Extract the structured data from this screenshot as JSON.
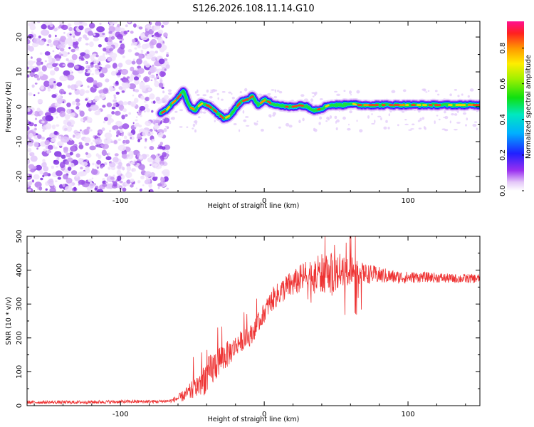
{
  "title": "S126.2026.108.11.14.G10",
  "colors": {
    "snr_line": "#ee3333",
    "spectrogram_noise": "#8a3ee6",
    "axis": "#000000"
  },
  "chart_data": [
    {
      "type": "heatmap",
      "xlabel": "Height of straight line (km)",
      "ylabel": "Frequency (Hz)",
      "xlim": [
        -165,
        150
      ],
      "ylim": [
        -24.5,
        24.5
      ],
      "xticks": [
        -100,
        0,
        100
      ],
      "yticks": [
        -20,
        -10,
        0,
        10,
        20
      ],
      "noise_region_x": [
        -165,
        -72
      ],
      "ridge": {
        "x": [
          -72,
          -68,
          -64,
          -60,
          -56,
          -52,
          -48,
          -44,
          -40,
          -36,
          -32,
          -28,
          -24,
          -20,
          -16,
          -12,
          -8,
          -4,
          0,
          5,
          10,
          15,
          20,
          25,
          30,
          35,
          40,
          45,
          50,
          55,
          60,
          65,
          70,
          80,
          90,
          100,
          110,
          120,
          130,
          140,
          150
        ],
        "y": [
          -2,
          -1,
          1,
          2.5,
          4.5,
          0,
          -1,
          1,
          0.5,
          -0.5,
          -2,
          -3.5,
          -2.5,
          -0.5,
          1.5,
          2,
          3,
          0.5,
          2,
          1,
          0.5,
          0,
          0,
          0.5,
          0,
          -1,
          -0.5,
          0.5,
          0.5,
          0.5,
          1,
          0.5,
          0.5,
          0.5,
          0.5,
          0.5,
          0.5,
          0.5,
          0.5,
          0.5,
          0.5
        ]
      },
      "colorbar": {
        "label": "Normalized spectral amplitude",
        "range": [
          0,
          0.95
        ],
        "ticks": [
          "0.0",
          "0.2",
          "0.4",
          "0.6",
          "0.8"
        ],
        "tick_values": [
          0,
          0.2,
          0.4,
          0.6,
          0.8
        ]
      }
    },
    {
      "type": "line",
      "xlabel": "Height of straight line (km)",
      "ylabel": "SNR (10 * v/v)",
      "xlim": [
        -165,
        150
      ],
      "ylim": [
        0,
        500
      ],
      "xticks": [
        -100,
        0,
        100
      ],
      "yticks": [
        0,
        100,
        200,
        300,
        400,
        500
      ],
      "series": [
        {
          "name": "SNR",
          "x": [
            -165,
            -150,
            -130,
            -110,
            -90,
            -75,
            -65,
            -58,
            -54,
            -50,
            -46,
            -42,
            -38,
            -34,
            -30,
            -26,
            -22,
            -18,
            -14,
            -10,
            -6,
            -2,
            2,
            6,
            10,
            14,
            18,
            22,
            26,
            30,
            35,
            40,
            45,
            50,
            55,
            60,
            65,
            70,
            80,
            90,
            100,
            110,
            120,
            130,
            140,
            150
          ],
          "values": [
            10,
            10,
            10,
            11,
            12,
            12,
            14,
            25,
            35,
            45,
            60,
            80,
            95,
            120,
            140,
            150,
            165,
            185,
            195,
            205,
            230,
            260,
            290,
            315,
            330,
            345,
            355,
            365,
            375,
            385,
            385,
            390,
            390,
            392,
            395,
            395,
            392,
            390,
            385,
            380,
            378,
            380,
            378,
            375,
            375,
            375
          ],
          "noise": [
            5,
            5,
            5,
            5,
            5,
            5,
            5,
            15,
            20,
            30,
            40,
            50,
            55,
            50,
            45,
            40,
            35,
            30,
            30,
            30,
            30,
            30,
            30,
            35,
            35,
            38,
            40,
            40,
            45,
            50,
            55,
            60,
            60,
            55,
            45,
            40,
            35,
            30,
            25,
            20,
            18,
            15,
            15,
            14,
            14,
            14
          ]
        }
      ]
    }
  ]
}
